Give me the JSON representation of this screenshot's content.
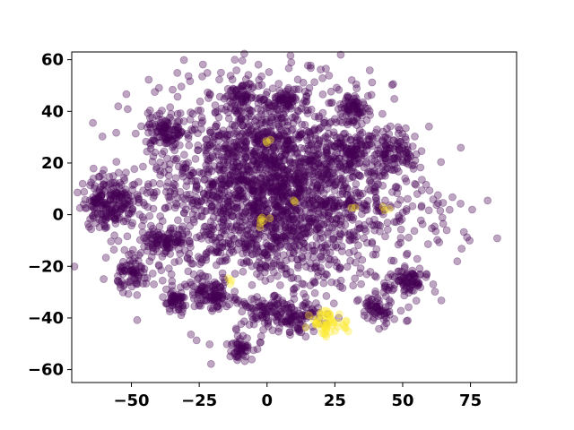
{
  "chart_data": {
    "type": "scatter",
    "title": "",
    "xlabel": "",
    "ylabel": "",
    "xlim": [
      -72,
      92
    ],
    "ylim": [
      -65,
      63
    ],
    "xticks": [
      -50,
      -25,
      0,
      25,
      50,
      75
    ],
    "yticks": [
      -60,
      -40,
      -20,
      0,
      20,
      40,
      60
    ],
    "grid": false,
    "legend": "none",
    "colors": {
      "class0": "#440154",
      "class1": "#fde725",
      "axes": "#000000"
    },
    "marker_alpha": 0.35,
    "clusters": [
      {
        "class": 0,
        "cx": 2,
        "cy": 10,
        "sx": 22,
        "sy": 20,
        "n": 2400
      },
      {
        "class": 0,
        "cx": -58,
        "cy": 5,
        "sx": 5,
        "sy": 5,
        "n": 200
      },
      {
        "class": 0,
        "cx": -38,
        "cy": 32,
        "sx": 3.5,
        "sy": 4,
        "n": 90
      },
      {
        "class": 0,
        "cx": -38,
        "cy": -11,
        "sx": 4,
        "sy": 3,
        "n": 90
      },
      {
        "class": 0,
        "cx": -49,
        "cy": -23,
        "sx": 3,
        "sy": 3,
        "n": 70
      },
      {
        "class": 0,
        "cx": -34,
        "cy": -34,
        "sx": 2.5,
        "sy": 2.5,
        "n": 50
      },
      {
        "class": 0,
        "cx": -21,
        "cy": -31,
        "sx": 4,
        "sy": 3,
        "n": 90
      },
      {
        "class": 0,
        "cx": -10,
        "cy": -51,
        "sx": 2.5,
        "sy": 2.5,
        "n": 50
      },
      {
        "class": 0,
        "cx": -9,
        "cy": 46,
        "sx": 3,
        "sy": 2,
        "n": 50
      },
      {
        "class": 0,
        "cx": 7,
        "cy": 45,
        "sx": 3,
        "sy": 2,
        "n": 50
      },
      {
        "class": 0,
        "cx": 31,
        "cy": 42,
        "sx": 2.5,
        "sy": 2.5,
        "n": 50
      },
      {
        "class": 0,
        "cx": 32,
        "cy": 25,
        "sx": 3,
        "sy": 3,
        "n": 60
      },
      {
        "class": 0,
        "cx": 47,
        "cy": 24,
        "sx": 4,
        "sy": 4,
        "n": 90
      },
      {
        "class": 0,
        "cx": 51,
        "cy": -26,
        "sx": 4,
        "sy": 4,
        "n": 90
      },
      {
        "class": 0,
        "cx": 40,
        "cy": -37,
        "sx": 3,
        "sy": 3,
        "n": 60
      },
      {
        "class": 0,
        "cx": 12,
        "cy": -40,
        "sx": 4,
        "sy": 3,
        "n": 80
      },
      {
        "class": 0,
        "cx": 0,
        "cy": -38,
        "sx": 4,
        "sy": 3,
        "n": 70
      },
      {
        "class": 0,
        "cx": 62,
        "cy": 5,
        "sx": 10,
        "sy": 10,
        "n": 30
      },
      {
        "class": 1,
        "cx": 22,
        "cy": -42,
        "sx": 3,
        "sy": 2.5,
        "n": 45
      },
      {
        "class": 1,
        "cx": -1,
        "cy": -2,
        "sx": 1.2,
        "sy": 1.2,
        "n": 6
      },
      {
        "class": 1,
        "cx": 1,
        "cy": 29,
        "sx": 1,
        "sy": 1,
        "n": 3
      },
      {
        "class": 1,
        "cx": 44,
        "cy": 2,
        "sx": 0.8,
        "sy": 0.8,
        "n": 3
      },
      {
        "class": 1,
        "cx": -14,
        "cy": -26,
        "sx": 1,
        "sy": 1,
        "n": 3
      },
      {
        "class": 1,
        "cx": 11,
        "cy": 5,
        "sx": 1,
        "sy": 1,
        "n": 2
      },
      {
        "class": 1,
        "cx": 31,
        "cy": 4,
        "sx": 1,
        "sy": 1,
        "n": 2
      },
      {
        "class": 1,
        "cx": 29,
        "cy": -43,
        "sx": 1.5,
        "sy": 1,
        "n": 5
      }
    ]
  }
}
